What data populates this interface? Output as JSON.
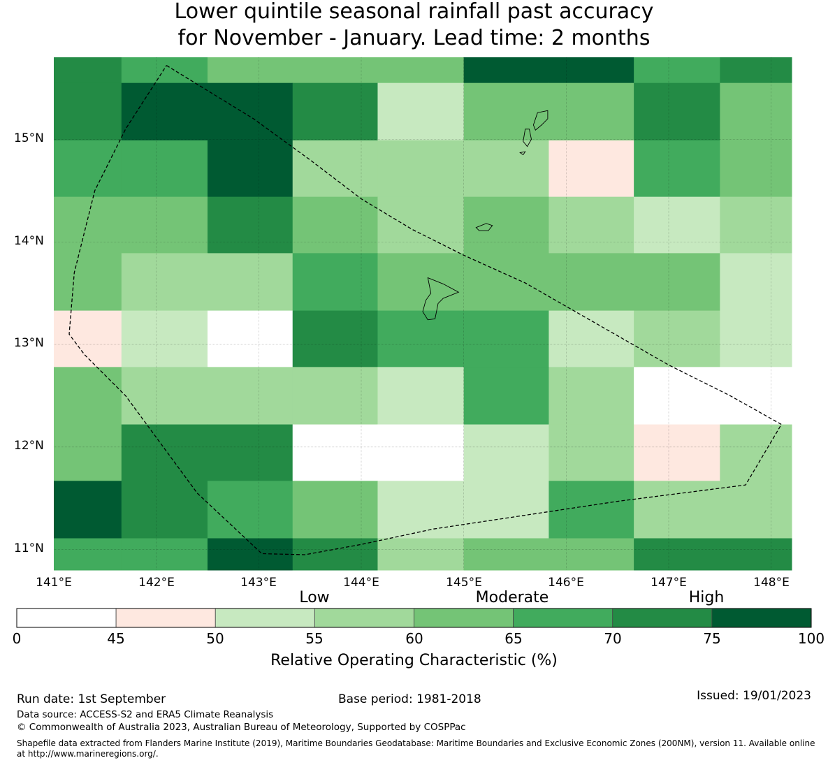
{
  "title_lines": [
    "Lower quintile seasonal rainfall past accuracy",
    "for November - January. Lead time: 2 months"
  ],
  "map": {
    "lat_labels": [
      "15°N",
      "14°N",
      "13°N",
      "12°N",
      "11°N"
    ],
    "lon_labels": [
      "141°E",
      "142°E",
      "143°E",
      "144°E",
      "145°E",
      "146°E",
      "147°E",
      "148°E"
    ],
    "lon_range": [
      141.0,
      148.2
    ],
    "lat_range": [
      10.8,
      15.8
    ],
    "grid_lon_edges": [
      141.0,
      141.66,
      142.5,
      143.33,
      144.16,
      145.0,
      145.83,
      146.66,
      147.5,
      148.2
    ],
    "grid_lat_edges": [
      15.8,
      15.55,
      14.99,
      14.44,
      13.89,
      13.33,
      12.78,
      12.22,
      11.67,
      11.11,
      10.8
    ],
    "roc_values": [
      [
        72,
        67,
        62,
        62,
        62,
        77,
        77,
        67,
        72
      ],
      [
        72,
        77,
        77,
        72,
        52,
        62,
        62,
        72,
        62
      ],
      [
        67,
        67,
        77,
        57,
        57,
        57,
        47,
        67,
        62
      ],
      [
        62,
        62,
        72,
        62,
        57,
        62,
        57,
        52,
        57
      ],
      [
        62,
        57,
        57,
        67,
        62,
        62,
        62,
        62,
        52
      ],
      [
        47,
        52,
        30,
        72,
        67,
        67,
        52,
        57,
        52
      ],
      [
        62,
        57,
        57,
        57,
        52,
        67,
        57,
        30,
        30
      ],
      [
        62,
        72,
        72,
        30,
        30,
        52,
        57,
        47,
        57
      ],
      [
        77,
        72,
        67,
        62,
        52,
        52,
        67,
        57,
        57
      ],
      [
        67,
        67,
        77,
        72,
        57,
        62,
        62,
        72,
        72
      ]
    ],
    "eez_boundary": [
      [
        142.1,
        15.72
      ],
      [
        142.95,
        15.2
      ],
      [
        143.5,
        14.8
      ],
      [
        144.0,
        14.42
      ],
      [
        144.5,
        14.12
      ],
      [
        145.0,
        13.87
      ],
      [
        145.6,
        13.6
      ],
      [
        146.3,
        13.2
      ],
      [
        147.0,
        12.8
      ],
      [
        147.6,
        12.5
      ],
      [
        148.1,
        12.22
      ],
      [
        147.75,
        11.63
      ],
      [
        146.5,
        11.47
      ],
      [
        145.5,
        11.32
      ],
      [
        144.7,
        11.2
      ],
      [
        144.0,
        11.05
      ],
      [
        143.45,
        10.95
      ],
      [
        143.03,
        10.96
      ],
      [
        142.4,
        11.55
      ],
      [
        141.7,
        12.5
      ],
      [
        141.3,
        12.9
      ],
      [
        141.15,
        13.1
      ],
      [
        141.2,
        13.7
      ],
      [
        141.4,
        14.5
      ],
      [
        141.7,
        15.1
      ],
      [
        142.1,
        15.72
      ]
    ],
    "islands": [
      [
        [
          145.72,
          15.26
        ],
        [
          145.82,
          15.28
        ],
        [
          145.82,
          15.2
        ],
        [
          145.76,
          15.14
        ],
        [
          145.7,
          15.09
        ],
        [
          145.68,
          15.14
        ],
        [
          145.72,
          15.26
        ]
      ],
      [
        [
          145.6,
          15.1
        ],
        [
          145.64,
          15.1
        ],
        [
          145.66,
          15.0
        ],
        [
          145.62,
          14.93
        ],
        [
          145.58,
          14.98
        ],
        [
          145.6,
          15.1
        ]
      ],
      [
        [
          145.55,
          14.87
        ],
        [
          145.6,
          14.88
        ],
        [
          145.58,
          14.85
        ],
        [
          145.55,
          14.87
        ]
      ],
      [
        [
          145.12,
          14.14
        ],
        [
          145.22,
          14.18
        ],
        [
          145.28,
          14.16
        ],
        [
          145.24,
          14.11
        ],
        [
          145.15,
          14.11
        ],
        [
          145.12,
          14.14
        ]
      ],
      [
        [
          144.65,
          13.65
        ],
        [
          144.8,
          13.59
        ],
        [
          144.95,
          13.51
        ],
        [
          144.8,
          13.45
        ],
        [
          144.75,
          13.4
        ],
        [
          144.72,
          13.25
        ],
        [
          144.65,
          13.24
        ],
        [
          144.6,
          13.32
        ],
        [
          144.63,
          13.43
        ],
        [
          144.68,
          13.5
        ],
        [
          144.65,
          13.65
        ]
      ]
    ]
  },
  "colorbar": {
    "bounds": [
      0,
      45,
      50,
      55,
      60,
      65,
      70,
      75,
      100
    ],
    "colors": [
      "#ffffff",
      "#fee8e0",
      "#c7e9c0",
      "#a1d99b",
      "#74c476",
      "#41ab5d",
      "#238b45",
      "#005a32"
    ],
    "tick_labels": [
      "0",
      "45",
      "50",
      "55",
      "60",
      "65",
      "70",
      "75",
      "100"
    ],
    "category_labels": [
      "Low",
      "Moderate",
      "High"
    ],
    "title": "Relative Operating Characteristic (%)"
  },
  "footer": {
    "run_date": "Run date: 1st September",
    "base_period": "Base period: 1981-2018",
    "issued": "Issued: 19/01/2023",
    "data_source": "Data source: ACCESS-S2 and ERA5 Climate Reanalysis",
    "copyright": "© Commonwealth of Australia 2023, Australian Bureau of Meteorology, Supported by COSPPac",
    "shapefile_line1": "Shapefile data extracted from Flanders Marine Institute (2019), Maritime Boundaries Geodatabase: Maritime Boundaries and Exclusive Economic Zones (200NM), version 11. Available online",
    "shapefile_line2": "at http://www.marineregions.org/."
  }
}
